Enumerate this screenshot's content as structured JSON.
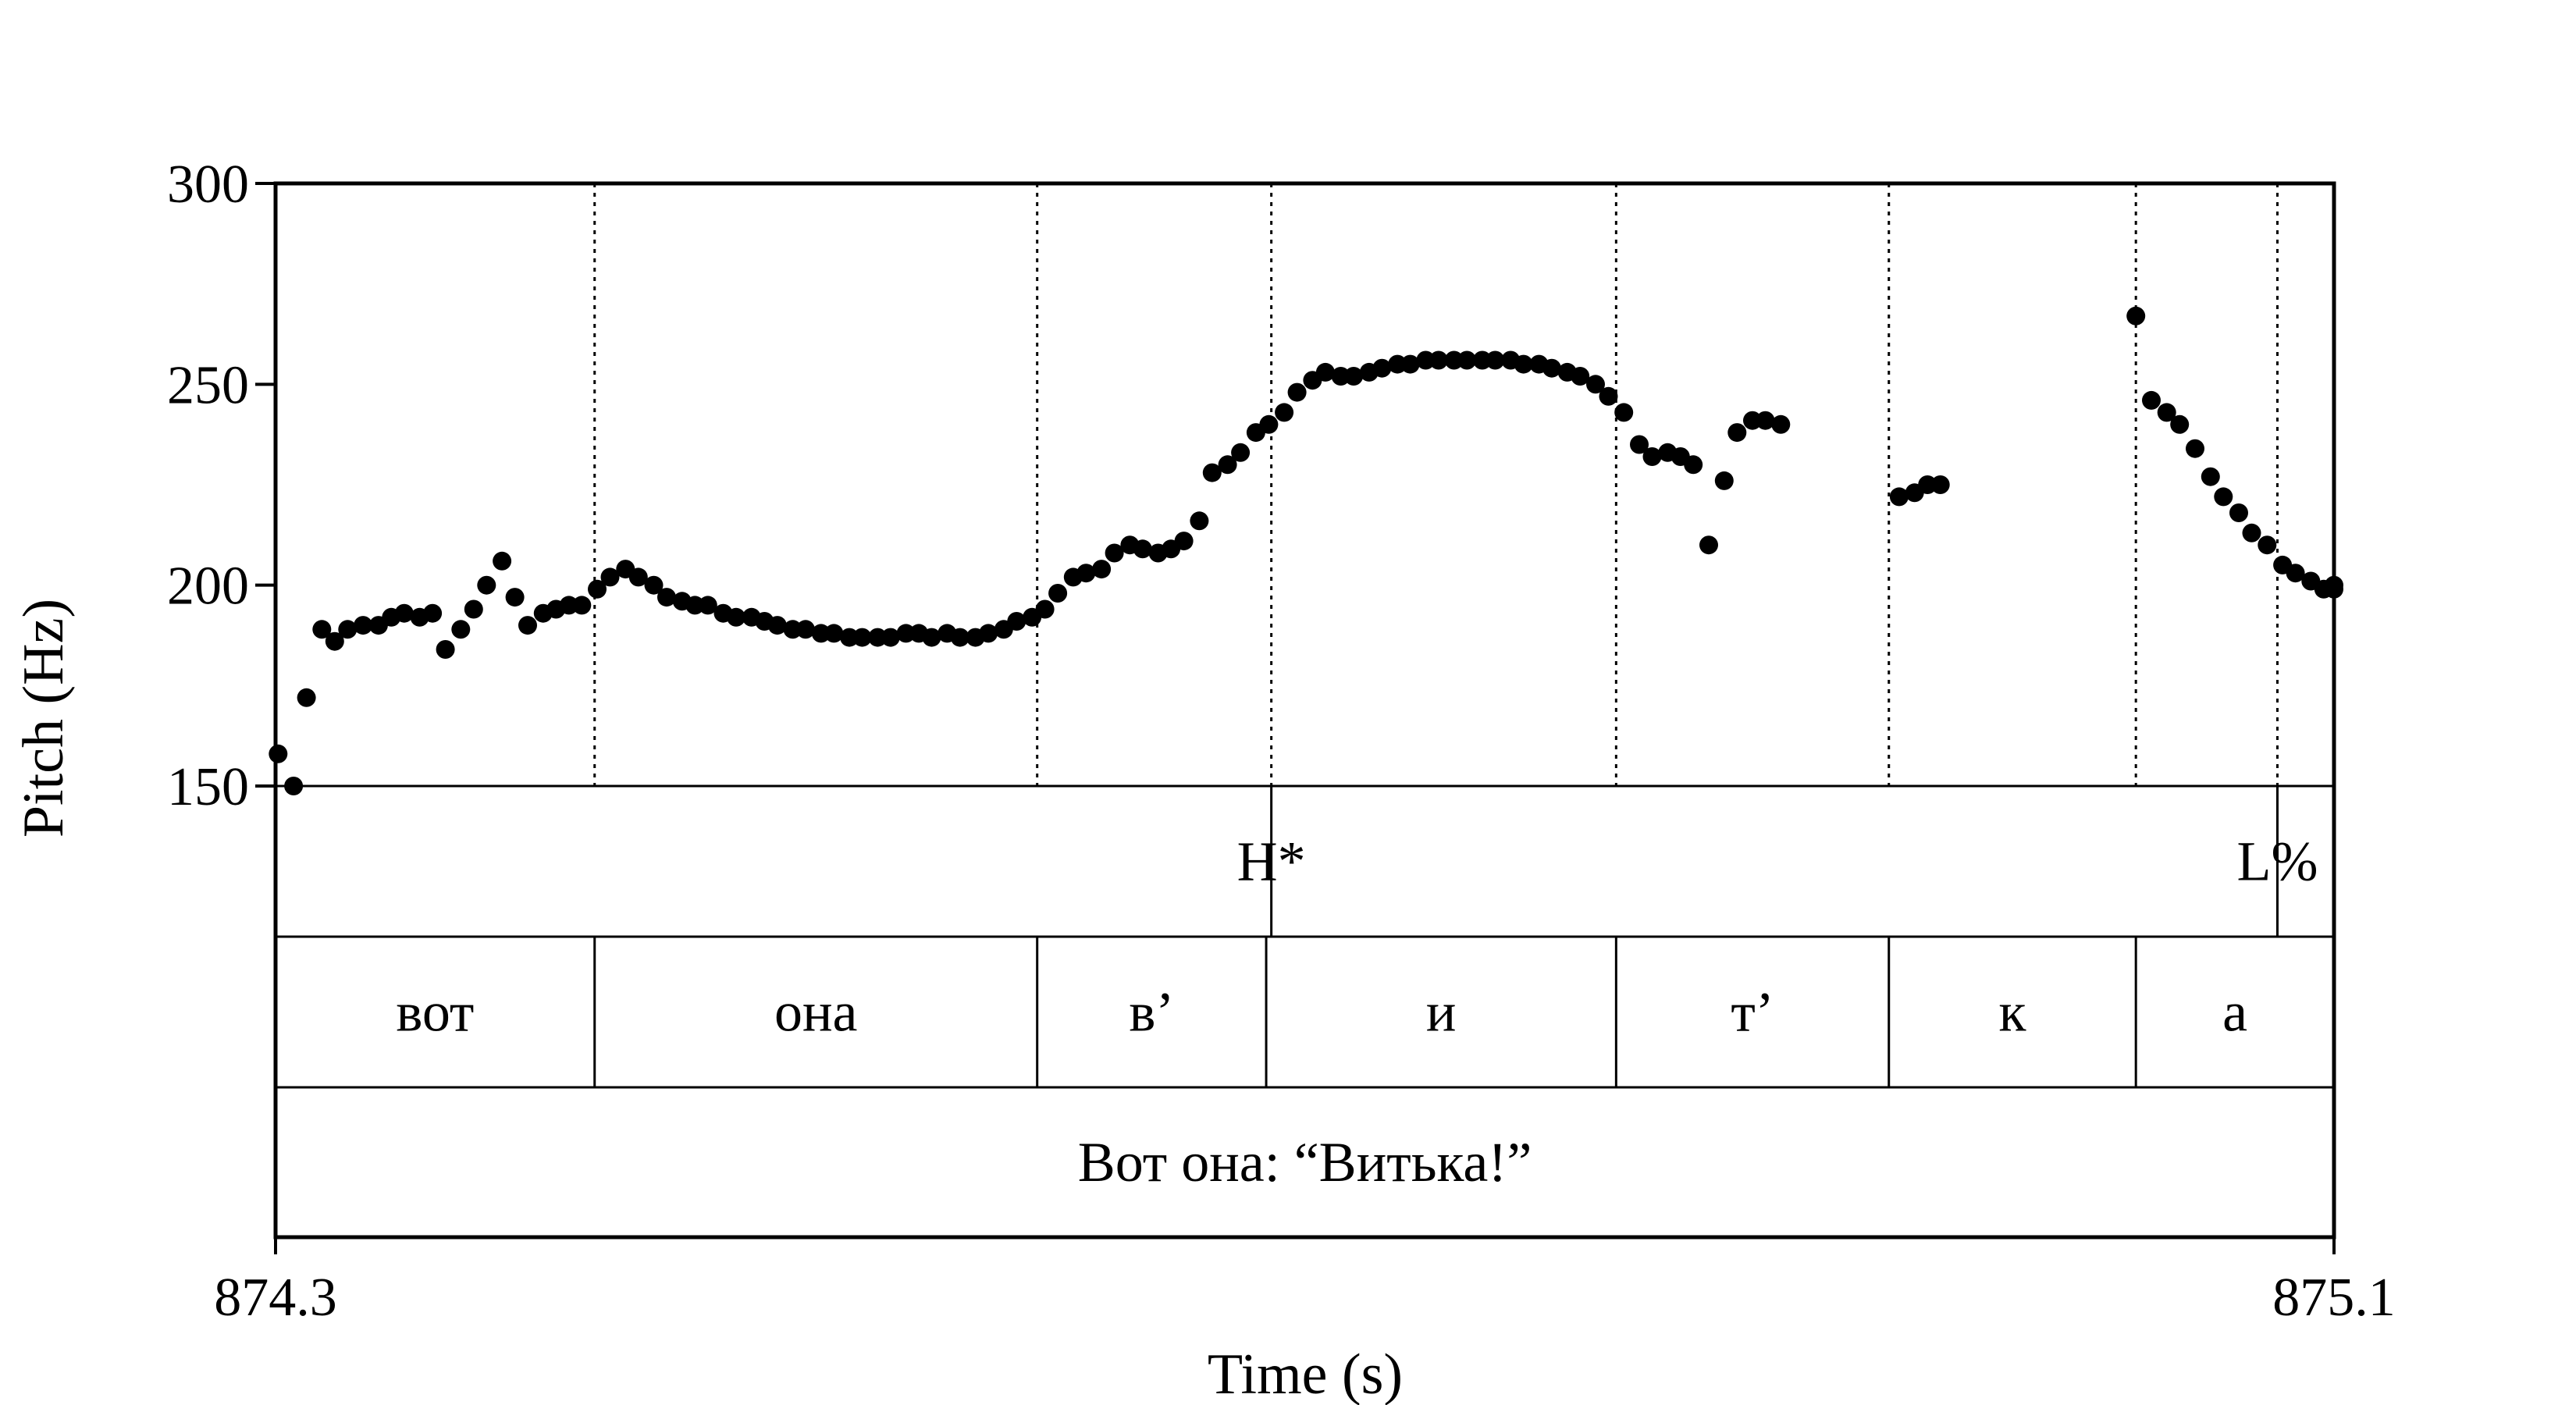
{
  "chart_data": {
    "type": "scatter",
    "xlabel": "Time (s)",
    "ylabel": "Pitch (Hz)",
    "xlim": [
      874.3,
      875.1
    ],
    "ylim": [
      150,
      300
    ],
    "x_ticks": [
      "874.3",
      "875.1"
    ],
    "y_ticks": [
      "150",
      "200",
      "250",
      "300"
    ],
    "grid": false,
    "series": [
      {
        "points": [
          [
            874.301,
            158
          ],
          [
            874.307,
            150
          ],
          [
            874.312,
            172
          ],
          [
            874.318,
            189
          ],
          [
            874.323,
            186
          ],
          [
            874.328,
            189
          ],
          [
            874.334,
            190
          ],
          [
            874.34,
            190
          ],
          [
            874.345,
            192
          ],
          [
            874.35,
            193
          ],
          [
            874.356,
            192
          ],
          [
            874.361,
            193
          ],
          [
            874.366,
            184
          ],
          [
            874.372,
            189
          ],
          [
            874.377,
            194
          ],
          [
            874.382,
            200
          ],
          [
            874.388,
            206
          ],
          [
            874.393,
            197
          ],
          [
            874.398,
            190
          ],
          [
            874.404,
            193
          ],
          [
            874.409,
            194
          ],
          [
            874.414,
            195
          ],
          [
            874.419,
            195
          ],
          [
            874.425,
            199
          ],
          [
            874.43,
            202
          ],
          [
            874.436,
            204
          ],
          [
            874.441,
            202
          ],
          [
            874.447,
            200
          ],
          [
            874.452,
            197
          ],
          [
            874.458,
            196
          ],
          [
            874.463,
            195
          ],
          [
            874.468,
            195
          ],
          [
            874.474,
            193
          ],
          [
            874.479,
            192
          ],
          [
            874.485,
            192
          ],
          [
            874.49,
            191
          ],
          [
            874.495,
            190
          ],
          [
            874.501,
            189
          ],
          [
            874.506,
            189
          ],
          [
            874.512,
            188
          ],
          [
            874.517,
            188
          ],
          [
            874.523,
            187
          ],
          [
            874.528,
            187
          ],
          [
            874.534,
            187
          ],
          [
            874.539,
            187
          ],
          [
            874.545,
            188
          ],
          [
            874.55,
            188
          ],
          [
            874.555,
            187
          ],
          [
            874.561,
            188
          ],
          [
            874.566,
            187
          ],
          [
            874.572,
            187
          ],
          [
            874.577,
            188
          ],
          [
            874.583,
            189
          ],
          [
            874.588,
            191
          ],
          [
            874.594,
            192
          ],
          [
            874.599,
            194
          ],
          [
            874.604,
            198
          ],
          [
            874.61,
            202
          ],
          [
            874.615,
            203
          ],
          [
            874.621,
            204
          ],
          [
            874.626,
            208
          ],
          [
            874.632,
            210
          ],
          [
            874.637,
            209
          ],
          [
            874.643,
            208
          ],
          [
            874.648,
            209
          ],
          [
            874.653,
            211
          ],
          [
            874.659,
            216
          ],
          [
            874.664,
            228
          ],
          [
            874.67,
            230
          ],
          [
            874.675,
            233
          ],
          [
            874.681,
            238
          ],
          [
            874.686,
            240
          ],
          [
            874.692,
            243
          ],
          [
            874.697,
            248
          ],
          [
            874.703,
            251
          ],
          [
            874.708,
            253
          ],
          [
            874.714,
            252
          ],
          [
            874.719,
            252
          ],
          [
            874.725,
            253
          ],
          [
            874.73,
            254
          ],
          [
            874.736,
            255
          ],
          [
            874.741,
            255
          ],
          [
            874.747,
            256
          ],
          [
            874.752,
            256
          ],
          [
            874.758,
            256
          ],
          [
            874.763,
            256
          ],
          [
            874.769,
            256
          ],
          [
            874.774,
            256
          ],
          [
            874.78,
            256
          ],
          [
            874.785,
            255
          ],
          [
            874.791,
            255
          ],
          [
            874.796,
            254
          ],
          [
            874.802,
            253
          ],
          [
            874.807,
            252
          ],
          [
            874.813,
            250
          ],
          [
            874.818,
            247
          ],
          [
            874.824,
            243
          ],
          [
            874.83,
            235
          ],
          [
            874.835,
            232
          ],
          [
            874.841,
            233
          ],
          [
            874.846,
            232
          ],
          [
            874.851,
            230
          ],
          [
            874.857,
            210
          ],
          [
            874.863,
            226
          ],
          [
            874.868,
            238
          ],
          [
            874.874,
            241
          ],
          [
            874.879,
            241
          ],
          [
            874.885,
            240
          ],
          [
            874.931,
            222
          ],
          [
            874.937,
            223
          ],
          [
            874.942,
            225
          ],
          [
            874.947,
            225
          ],
          [
            875.023,
            267
          ],
          [
            875.029,
            246
          ],
          [
            875.035,
            243
          ],
          [
            875.04,
            240
          ],
          [
            875.046,
            234
          ],
          [
            875.052,
            227
          ],
          [
            875.057,
            222
          ],
          [
            875.063,
            218
          ],
          [
            875.068,
            213
          ],
          [
            875.074,
            210
          ],
          [
            875.08,
            205
          ],
          [
            875.085,
            203
          ],
          [
            875.091,
            201
          ],
          [
            875.096,
            199
          ],
          [
            875.1,
            199
          ],
          [
            875.1,
            200
          ]
        ]
      }
    ],
    "tiers": [
      {
        "intervals": [
          {
            "start": 874.3,
            "end": 874.687,
            "label": ""
          },
          {
            "start": 874.687,
            "end": 875.078,
            "label": "H*"
          },
          {
            "start": 875.078,
            "end": 875.1,
            "label": "L%"
          }
        ]
      },
      {
        "intervals": [
          {
            "start": 874.3,
            "end": 874.424,
            "label": "вот"
          },
          {
            "start": 874.424,
            "end": 874.596,
            "label": "она"
          },
          {
            "start": 874.596,
            "end": 874.685,
            "label": "в’"
          },
          {
            "start": 874.685,
            "end": 874.821,
            "label": "и"
          },
          {
            "start": 874.821,
            "end": 874.927,
            "label": "т’"
          },
          {
            "start": 874.927,
            "end": 875.023,
            "label": "к"
          },
          {
            "start": 875.023,
            "end": 875.1,
            "label": "а"
          }
        ]
      },
      {
        "intervals": [
          {
            "start": 874.3,
            "end": 875.1,
            "label": "Вот она: “Витька!”"
          }
        ]
      }
    ],
    "boundary_lines": [
      874.424,
      874.596,
      874.687,
      874.821,
      874.927,
      875.023,
      875.078
    ],
    "colors": {
      "points": "#000000",
      "axes": "#000000",
      "background": "#ffffff"
    }
  }
}
